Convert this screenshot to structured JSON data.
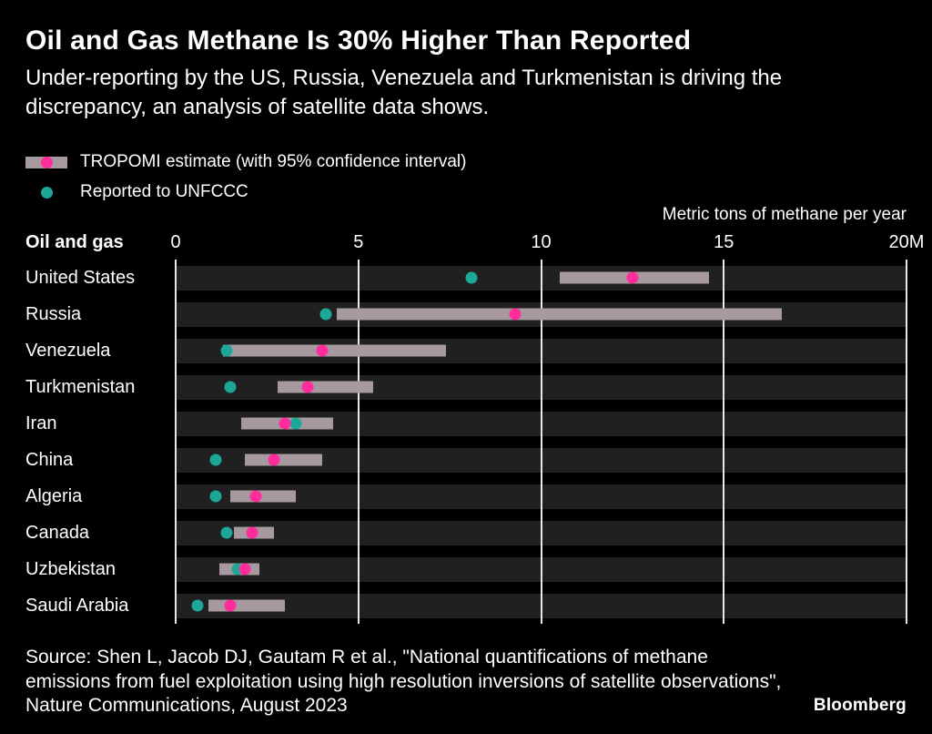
{
  "header": {
    "title": "Oil and Gas Methane Is 30% Higher Than Reported",
    "subtitle": "Under-reporting by the US, Russia, Venezuela and Turkmenistan is driving the discrepancy, an analysis of satellite data shows."
  },
  "legend": {
    "items": [
      {
        "label": "TROPOMI estimate (with 95% confidence interval)",
        "swatch": "bar-with-pink-dot"
      },
      {
        "label": "Reported to UNFCCC",
        "swatch": "teal-dot"
      }
    ]
  },
  "chart_data": {
    "type": "dot-range",
    "title": "Oil and Gas Methane Is 30% Higher Than Reported",
    "axis_title": "Metric tons of methane per year",
    "group_label": "Oil and gas",
    "x_ticks": [
      "0",
      "5",
      "10",
      "15",
      "20M"
    ],
    "x_tick_values": [
      0,
      5,
      10,
      15,
      20
    ],
    "xlim": [
      0,
      20
    ],
    "value_unit": "millions of metric tons per year",
    "grid": true,
    "legend_position": "top-left",
    "rows": [
      {
        "label": "United States",
        "reported": 8.1,
        "tropomi": 12.5,
        "ci_low": 10.5,
        "ci_high": 14.6
      },
      {
        "label": "Russia",
        "reported": 4.1,
        "tropomi": 9.3,
        "ci_low": 4.4,
        "ci_high": 16.6
      },
      {
        "label": "Venezuela",
        "reported": 1.4,
        "tropomi": 4.0,
        "ci_low": 1.3,
        "ci_high": 7.4
      },
      {
        "label": "Turkmenistan",
        "reported": 1.5,
        "tropomi": 3.6,
        "ci_low": 2.8,
        "ci_high": 5.4
      },
      {
        "label": "Iran",
        "reported": 3.3,
        "tropomi": 3.0,
        "ci_low": 1.8,
        "ci_high": 4.3
      },
      {
        "label": "China",
        "reported": 1.1,
        "tropomi": 2.7,
        "ci_low": 1.9,
        "ci_high": 4.0
      },
      {
        "label": "Algeria",
        "reported": 1.1,
        "tropomi": 2.2,
        "ci_low": 1.5,
        "ci_high": 3.3
      },
      {
        "label": "Canada",
        "reported": 1.4,
        "tropomi": 2.1,
        "ci_low": 1.6,
        "ci_high": 2.7
      },
      {
        "label": "Uzbekistan",
        "reported": 1.7,
        "tropomi": 1.9,
        "ci_low": 1.2,
        "ci_high": 2.3
      },
      {
        "label": "Saudi Arabia",
        "reported": 0.6,
        "tropomi": 1.5,
        "ci_low": 0.9,
        "ci_high": 3.0
      }
    ]
  },
  "colors": {
    "background": "#000000",
    "band": "#202020",
    "ci_bar": "#a69aa0",
    "tropomi_dot": "#ff2d9c",
    "reported_dot": "#1ca897",
    "gridline": "#e8e8e8",
    "text": "#ffffff"
  },
  "footer": {
    "source": "Source: Shen L, Jacob DJ, Gautam R et al., \"National quantifications of methane emissions from fuel exploitation using high resolution inversions of satellite observations\", Nature Communications, August 2023",
    "brand": "Bloomberg"
  }
}
